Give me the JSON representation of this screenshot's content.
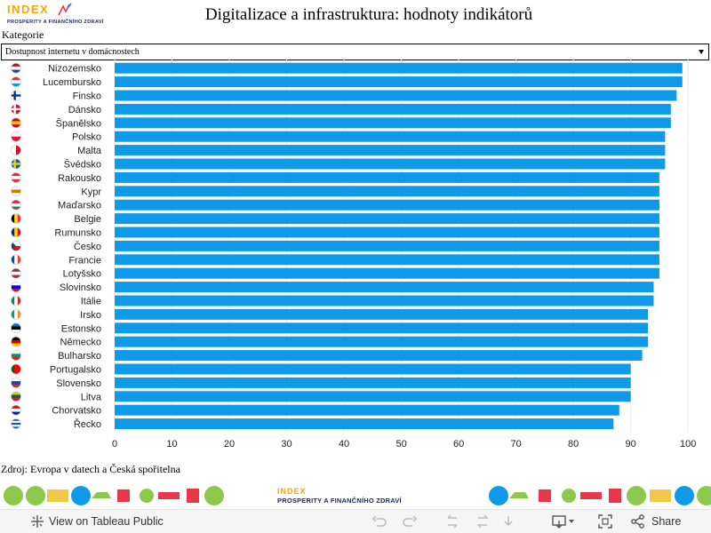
{
  "header": {
    "logo_word": "INDEX",
    "logo_sub": "PROSPERITY A FINANČNÍHO ZDRAVÍ",
    "title": "Digitalizace a infrastruktura: hodnoty indikátorů"
  },
  "filter": {
    "label": "Kategorie",
    "selected": "Dostupnost internetu v domácnostech"
  },
  "chart_data": {
    "type": "bar",
    "orientation": "horizontal",
    "categories": [
      "Nizozemsko",
      "Lucembursko",
      "Finsko",
      "Dánsko",
      "Španělsko",
      "Polsko",
      "Malta",
      "Švédsko",
      "Rakousko",
      "Kypr",
      "Maďarsko",
      "Belgie",
      "Rumunsko",
      "Česko",
      "Francie",
      "Lotyšsko",
      "Slovinsko",
      "Itálie",
      "Irsko",
      "Estonsko",
      "Německo",
      "Bulharsko",
      "Portugalsko",
      "Slovensko",
      "Litva",
      "Chorvatsko",
      "Řecko"
    ],
    "values": [
      99,
      99,
      98,
      97,
      97,
      96,
      96,
      96,
      95,
      95,
      95,
      95,
      95,
      95,
      95,
      95,
      94,
      94,
      93,
      93,
      93,
      92,
      90,
      90,
      90,
      88,
      87
    ],
    "xlim": [
      0,
      104
    ],
    "xticks": [
      "0",
      "10",
      "20",
      "30",
      "40",
      "50",
      "60",
      "70",
      "80",
      "90",
      "100"
    ],
    "bar_color": "#0f9ae9",
    "grid": true
  },
  "flags": [
    {
      "c": [
        "#ae1c28",
        "#ffffff",
        "#21468b"
      ],
      "dir": "h"
    },
    {
      "c": [
        "#ed2939",
        "#ffffff",
        "#00a1de"
      ],
      "dir": "h"
    },
    {
      "c": [
        "#ffffff",
        "#003580"
      ],
      "dir": "cross"
    },
    {
      "c": [
        "#c8102e",
        "#ffffff"
      ],
      "dir": "cross"
    },
    {
      "c": [
        "#c60b1e",
        "#ffc400",
        "#c60b1e"
      ],
      "dir": "h"
    },
    {
      "c": [
        "#ffffff",
        "#dc143c"
      ],
      "dir": "h"
    },
    {
      "c": [
        "#ffffff",
        "#cf142b"
      ],
      "dir": "v"
    },
    {
      "c": [
        "#006aa7",
        "#fecc00"
      ],
      "dir": "cross"
    },
    {
      "c": [
        "#ed2939",
        "#ffffff",
        "#ed2939"
      ],
      "dir": "h"
    },
    {
      "c": [
        "#ffffff",
        "#d57800",
        "#ffffff"
      ],
      "dir": "h"
    },
    {
      "c": [
        "#cd2a3e",
        "#ffffff",
        "#436f4d"
      ],
      "dir": "h"
    },
    {
      "c": [
        "#000000",
        "#fdda24",
        "#ef3340"
      ],
      "dir": "v"
    },
    {
      "c": [
        "#002b7f",
        "#fcd116",
        "#ce1126"
      ],
      "dir": "v"
    },
    {
      "c": [
        "#ffffff",
        "#d7141a",
        "#11457e"
      ],
      "dir": "czech"
    },
    {
      "c": [
        "#0055a4",
        "#ffffff",
        "#ef4135"
      ],
      "dir": "v"
    },
    {
      "c": [
        "#9e3039",
        "#ffffff",
        "#9e3039"
      ],
      "dir": "h"
    },
    {
      "c": [
        "#ffffff",
        "#0000ff",
        "#ff0000"
      ],
      "dir": "h"
    },
    {
      "c": [
        "#009246",
        "#ffffff",
        "#ce2b37"
      ],
      "dir": "v"
    },
    {
      "c": [
        "#169b62",
        "#ffffff",
        "#ff883e"
      ],
      "dir": "v"
    },
    {
      "c": [
        "#0072ce",
        "#000000",
        "#ffffff"
      ],
      "dir": "h"
    },
    {
      "c": [
        "#000000",
        "#dd0000",
        "#ffce00"
      ],
      "dir": "h"
    },
    {
      "c": [
        "#ffffff",
        "#00966e",
        "#d62612"
      ],
      "dir": "h"
    },
    {
      "c": [
        "#006600",
        "#ff0000",
        "#ff0000"
      ],
      "dir": "v"
    },
    {
      "c": [
        "#ffffff",
        "#0b4ea2",
        "#ee1c25"
      ],
      "dir": "h"
    },
    {
      "c": [
        "#fdb913",
        "#006a44",
        "#c1272d"
      ],
      "dir": "h"
    },
    {
      "c": [
        "#ff0000",
        "#ffffff",
        "#171796"
      ],
      "dir": "h"
    },
    {
      "c": [
        "#0d5eaf",
        "#ffffff"
      ],
      "dir": "stripes"
    }
  ],
  "source": "Zdroj: Evropa v datech a Česká spořitelna",
  "banner": {
    "logo_word": "INDEX",
    "logo_sub": "PROSPERITY A FINANČNÍHO ZDRAVÍ"
  },
  "toolbar": {
    "view_label": "View on Tableau Public",
    "share_label": "Share"
  }
}
